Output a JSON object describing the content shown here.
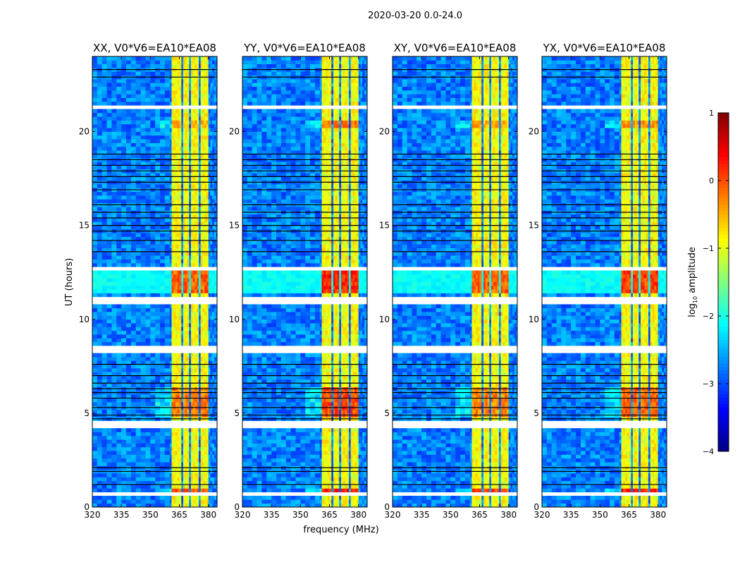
{
  "chart_data": {
    "type": "heatmap",
    "suptitle": "2020-03-20 0.0-24.0",
    "xlabel": "frequency (MHz)",
    "ylabel": "UT (hours)",
    "xlim": [
      320,
      384.5
    ],
    "ylim": [
      0,
      24
    ],
    "xticks": [
      "320",
      "335",
      "350",
      "365",
      "380"
    ],
    "yticks": [
      "0",
      "5",
      "10",
      "15",
      "20"
    ],
    "panels": [
      {
        "title": "XX, V0*V6=EA10*EA08",
        "boost": 0.0
      },
      {
        "title": "YY, V0*V6=EA10*EA08",
        "boost": 0.3
      },
      {
        "title": "XY, V0*V6=EA10*EA08",
        "boost": 0.0
      },
      {
        "title": "YX, V0*V6=EA10*EA08",
        "boost": 0.15
      }
    ],
    "colorbar": {
      "label_main": "log",
      "label_sub": "10",
      "label_rest": " amplitude",
      "range": [
        -4,
        1
      ],
      "ticks": [
        "1",
        "0",
        "−1",
        "−2",
        "−3",
        "−4"
      ],
      "colormap": "jet"
    },
    "background_log_amplitude": -2.75,
    "rfi_channels_mhz": [
      [
        361,
        366
      ],
      [
        367,
        370.5
      ],
      [
        371,
        375
      ],
      [
        376,
        380
      ]
    ],
    "rfi_log_amplitude": -0.9,
    "bright_periods_hours": [
      [
        11.3,
        12.7,
        0.8
      ],
      [
        4.8,
        6.4,
        0.6
      ],
      [
        0.85,
        1.0,
        0.9
      ],
      [
        20.2,
        20.6,
        0.4
      ]
    ],
    "flagged_hours": [
      [
        21.25,
        21.45
      ],
      [
        10.85,
        11.15
      ],
      [
        12.65,
        12.75
      ],
      [
        8.2,
        8.65
      ],
      [
        4.3,
        4.55
      ],
      [
        0.6,
        0.8
      ]
    ],
    "flag_lines_hours": [
      23.3,
      22.9,
      18.8,
      18.5,
      18.2,
      17.9,
      17.6,
      17.3,
      16.9,
      16.1,
      15.7,
      15.4,
      15.0,
      14.7,
      14.2,
      13.6,
      7.6,
      7.0,
      6.6,
      6.3,
      6.1,
      5.8,
      5.3,
      4.9,
      4.7,
      2.1,
      1.9,
      1.2
    ]
  }
}
